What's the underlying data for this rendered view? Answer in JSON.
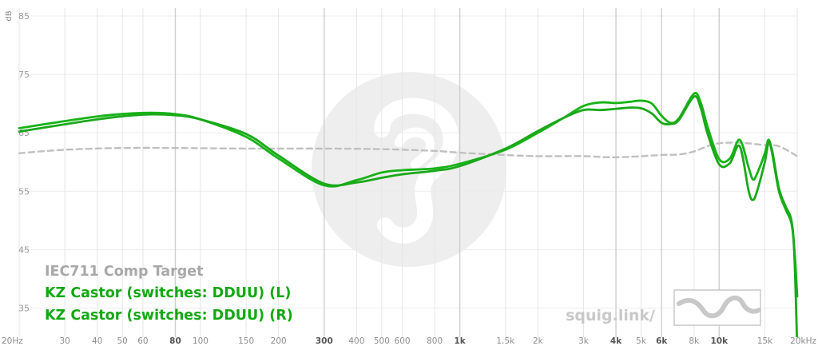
{
  "chart_data": {
    "type": "line",
    "title": "",
    "xlabel": "",
    "ylabel": "dB",
    "x_scale": "log",
    "xlim": [
      20,
      20000
    ],
    "ylim": [
      30,
      85
    ],
    "y_ticks": [
      {
        "value": 85,
        "label": "85"
      },
      {
        "value": 75,
        "label": "75"
      },
      {
        "value": 65,
        "label": "65"
      },
      {
        "value": 55,
        "label": "55"
      },
      {
        "value": 45,
        "label": "45"
      },
      {
        "value": 35,
        "label": "35"
      }
    ],
    "x_ticks": [
      {
        "value": 20,
        "label": "20Hz",
        "major": false
      },
      {
        "value": 30,
        "label": "30",
        "major": false
      },
      {
        "value": 40,
        "label": "40",
        "major": false
      },
      {
        "value": 50,
        "label": "50",
        "major": false
      },
      {
        "value": 60,
        "label": "60",
        "major": false
      },
      {
        "value": 80,
        "label": "80",
        "major": true
      },
      {
        "value": 100,
        "label": "100",
        "major": false
      },
      {
        "value": 150,
        "label": "150",
        "major": false
      },
      {
        "value": 200,
        "label": "200",
        "major": false
      },
      {
        "value": 300,
        "label": "300",
        "major": true
      },
      {
        "value": 400,
        "label": "400",
        "major": false
      },
      {
        "value": 500,
        "label": "500",
        "major": false
      },
      {
        "value": 600,
        "label": "600",
        "major": false
      },
      {
        "value": 800,
        "label": "800",
        "major": false
      },
      {
        "value": 1000,
        "label": "1k",
        "major": true
      },
      {
        "value": 1500,
        "label": "1.5k",
        "major": false
      },
      {
        "value": 2000,
        "label": "2k",
        "major": false
      },
      {
        "value": 3000,
        "label": "3k",
        "major": false
      },
      {
        "value": 4000,
        "label": "4k",
        "major": true
      },
      {
        "value": 5000,
        "label": "5k",
        "major": false
      },
      {
        "value": 6000,
        "label": "6k",
        "major": true
      },
      {
        "value": 8000,
        "label": "8k",
        "major": false
      },
      {
        "value": 10000,
        "label": "10k",
        "major": true
      },
      {
        "value": 15000,
        "label": "15k",
        "major": false
      },
      {
        "value": 20000,
        "label": "20kHz",
        "major": false
      }
    ],
    "grid": true,
    "legend_position": "bottom-left",
    "series": [
      {
        "name": "IEC711 Comp Target",
        "color": "#c0c0c0",
        "dashed": true,
        "points": [
          [
            20,
            61.5
          ],
          [
            30,
            62.1
          ],
          [
            50,
            62.4
          ],
          [
            80,
            62.4
          ],
          [
            150,
            62.3
          ],
          [
            300,
            62.3
          ],
          [
            500,
            62.2
          ],
          [
            800,
            61.9
          ],
          [
            1000,
            61.6
          ],
          [
            1500,
            61.2
          ],
          [
            2000,
            61.0
          ],
          [
            3000,
            61.0
          ],
          [
            4000,
            60.8
          ],
          [
            6000,
            61.2
          ],
          [
            7000,
            61.3
          ],
          [
            8000,
            61.8
          ],
          [
            9000,
            62.7
          ],
          [
            10000,
            63.2
          ],
          [
            12000,
            63.3
          ],
          [
            15000,
            62.9
          ],
          [
            17000,
            62.7
          ],
          [
            20000,
            61.0
          ]
        ]
      },
      {
        "name": "KZ Castor (switches: DDUU) (L)",
        "color": "#16b316",
        "dashed": false,
        "points": [
          [
            20,
            65.8
          ],
          [
            40,
            67.8
          ],
          [
            60,
            68.4
          ],
          [
            80,
            68.2
          ],
          [
            100,
            67.3
          ],
          [
            150,
            64.3
          ],
          [
            200,
            60.6
          ],
          [
            300,
            56.0
          ],
          [
            400,
            56.9
          ],
          [
            500,
            58.2
          ],
          [
            600,
            58.6
          ],
          [
            800,
            58.9
          ],
          [
            1000,
            59.7
          ],
          [
            1500,
            62.1
          ],
          [
            2000,
            65.0
          ],
          [
            2500,
            67.5
          ],
          [
            3000,
            69.6
          ],
          [
            3500,
            70.2
          ],
          [
            4000,
            70.1
          ],
          [
            4500,
            70.3
          ],
          [
            5000,
            70.5
          ],
          [
            5500,
            70.0
          ],
          [
            6000,
            67.9
          ],
          [
            6500,
            66.7
          ],
          [
            7000,
            67.5
          ],
          [
            8000,
            71.7
          ],
          [
            8500,
            70.1
          ],
          [
            9000,
            66.2
          ],
          [
            10000,
            60.5
          ],
          [
            11000,
            60.6
          ],
          [
            12000,
            63.8
          ],
          [
            13000,
            59.0
          ],
          [
            13500,
            57.0
          ],
          [
            14000,
            58.0
          ],
          [
            15000,
            61.5
          ],
          [
            15500,
            63.8
          ],
          [
            16000,
            61.5
          ],
          [
            17000,
            55.0
          ],
          [
            18000,
            52.0
          ],
          [
            19000,
            49.5
          ],
          [
            19500,
            45.0
          ],
          [
            20000,
            37.0
          ]
        ]
      },
      {
        "name": "KZ Castor (switches: DDUU) (R)",
        "color": "#1aa81a",
        "dashed": false,
        "points": [
          [
            20,
            65.2
          ],
          [
            40,
            67.3
          ],
          [
            60,
            68.1
          ],
          [
            80,
            68.0
          ],
          [
            100,
            67.3
          ],
          [
            150,
            64.8
          ],
          [
            200,
            61.1
          ],
          [
            300,
            56.3
          ],
          [
            400,
            56.5
          ],
          [
            500,
            57.3
          ],
          [
            600,
            57.9
          ],
          [
            800,
            58.5
          ],
          [
            1000,
            59.3
          ],
          [
            1500,
            62.3
          ],
          [
            2000,
            65.3
          ],
          [
            2500,
            67.5
          ],
          [
            3000,
            68.9
          ],
          [
            3500,
            68.9
          ],
          [
            4000,
            69.1
          ],
          [
            4500,
            69.3
          ],
          [
            5000,
            69.2
          ],
          [
            5500,
            68.3
          ],
          [
            6000,
            66.7
          ],
          [
            6500,
            66.5
          ],
          [
            7000,
            67.2
          ],
          [
            8000,
            71.2
          ],
          [
            8500,
            69.2
          ],
          [
            9000,
            65.0
          ],
          [
            10000,
            59.6
          ],
          [
            11000,
            59.8
          ],
          [
            12000,
            62.7
          ],
          [
            13000,
            55.0
          ],
          [
            13500,
            53.5
          ],
          [
            14000,
            55.0
          ],
          [
            15000,
            60.0
          ],
          [
            15500,
            63.3
          ],
          [
            16000,
            62.0
          ],
          [
            17000,
            55.5
          ],
          [
            18000,
            52.5
          ],
          [
            19000,
            50.0
          ],
          [
            19500,
            44.0
          ],
          [
            20000,
            28.0
          ]
        ]
      }
    ]
  },
  "legend": {
    "target_label": "IEC711 Comp Target",
    "left_label": "KZ Castor (switches: DDUU) (L)",
    "right_label": "KZ Castor (switches: DDUU) (R)",
    "target_color": "#a8a8a8",
    "left_color": "#12a812",
    "right_color": "#12a812"
  },
  "branding": {
    "text": "squig.link/",
    "logo_icon": "squiggle-wave-icon",
    "watermark_icon": "ear-watermark-icon"
  }
}
